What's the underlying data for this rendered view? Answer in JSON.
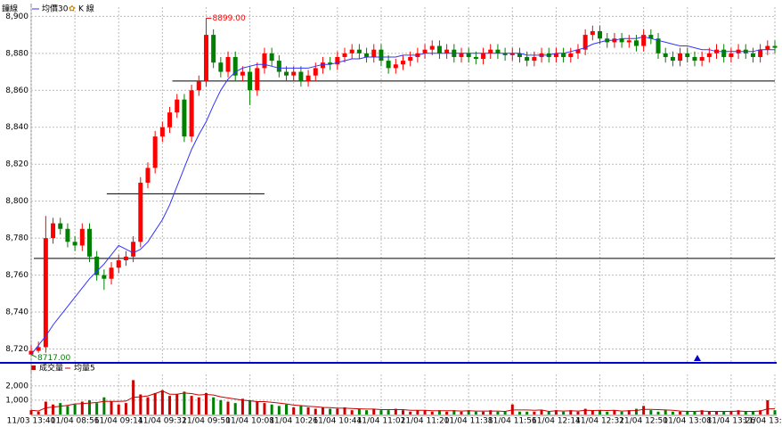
{
  "chart_data": {
    "type": "candlestick",
    "title": "鐘線",
    "legend": [
      "均價30",
      "K 線"
    ],
    "volume_legend": [
      "成交量",
      "均量5"
    ],
    "up_color": "#ff0000",
    "down_color": "#008000",
    "ma_color": "#3333ff",
    "vol_color": "#cc0000",
    "vol_ma_color": "#cc0000",
    "grid": true,
    "categories": [
      "11/03 13:40",
      null,
      null,
      null,
      null,
      null,
      "11/04 08:56",
      null,
      null,
      null,
      null,
      null,
      "11/04 09:14",
      null,
      null,
      null,
      null,
      null,
      "11/04 09:32",
      null,
      null,
      null,
      null,
      null,
      "11/04 09:50",
      null,
      null,
      null,
      null,
      null,
      "11/04 10:08",
      null,
      null,
      null,
      null,
      null,
      "11/04 10:26",
      null,
      null,
      null,
      null,
      null,
      "11/04 10:44",
      null,
      null,
      null,
      null,
      null,
      "11/04 11:02",
      null,
      null,
      null,
      null,
      null,
      "11/04 11:20",
      null,
      null,
      null,
      null,
      null,
      "11/04 11:38",
      null,
      null,
      null,
      null,
      null,
      "11/04 11:56",
      null,
      null,
      null,
      null,
      null,
      "11/04 12:14",
      null,
      null,
      null,
      null,
      null,
      "11/04 12:32",
      null,
      null,
      null,
      null,
      null,
      "11/04 12:50",
      null,
      null,
      null,
      null,
      null,
      "11/04 13:08",
      null,
      null,
      null,
      null,
      null,
      "11/04 13:26",
      null,
      null,
      null,
      null,
      null,
      "11/04 13:"
    ],
    "open": [
      8717,
      8719,
      8721,
      8780,
      8788,
      8785,
      8778,
      8776,
      8785,
      8770,
      8760,
      8758,
      8764,
      8768,
      8770,
      8778,
      8810,
      8818,
      8835,
      8840,
      8848,
      8855,
      8835,
      8860,
      8865,
      8890,
      8875,
      8870,
      8878,
      8868,
      8870,
      8860,
      8872,
      8880,
      8876,
      8870,
      8868,
      8870,
      8865,
      8868,
      8872,
      8875,
      8874,
      8878,
      8880,
      8882,
      8880,
      8878,
      8882,
      8876,
      8872,
      8874,
      8876,
      8878,
      8880,
      8882,
      8884,
      8880,
      8882,
      8878,
      8880,
      8878,
      8877,
      8880,
      8882,
      8880,
      8879,
      8880,
      8878,
      8876,
      8878,
      8880,
      8878,
      8880,
      8878,
      8880,
      8882,
      8890,
      8892,
      8888,
      8886,
      8888,
      8886,
      8887,
      8884,
      8890,
      8888,
      8880,
      8878,
      8876,
      8880,
      8878,
      8876,
      8878,
      8880,
      8882,
      8878,
      8880,
      8882,
      8880,
      8878,
      8882,
      8884
    ],
    "high": [
      8722,
      8724,
      8792,
      8791,
      8791,
      8788,
      8781,
      8788,
      8788,
      8773,
      8763,
      8767,
      8771,
      8773,
      8781,
      8813,
      8821,
      8838,
      8843,
      8851,
      8858,
      8858,
      8863,
      8868,
      8899,
      8893,
      8878,
      8881,
      8881,
      8873,
      8873,
      8875,
      8883,
      8883,
      8879,
      8873,
      8873,
      8873,
      8871,
      8875,
      8878,
      8878,
      8881,
      8883,
      8885,
      8885,
      8883,
      8885,
      8885,
      8879,
      8877,
      8879,
      8881,
      8883,
      8885,
      8887,
      8887,
      8885,
      8885,
      8883,
      8883,
      8881,
      8883,
      8885,
      8885,
      8883,
      8883,
      8883,
      8881,
      8881,
      8883,
      8883,
      8883,
      8883,
      8883,
      8885,
      8893,
      8895,
      8895,
      8891,
      8891,
      8891,
      8890,
      8890,
      8893,
      8893,
      8891,
      8883,
      8881,
      8883,
      8883,
      8881,
      8881,
      8883,
      8885,
      8885,
      8883,
      8885,
      8885,
      8883,
      8885,
      8887,
      8887
    ],
    "low": [
      8717,
      8718,
      8718,
      8777,
      8782,
      8775,
      8773,
      8773,
      8767,
      8757,
      8752,
      8755,
      8761,
      8765,
      8767,
      8775,
      8807,
      8815,
      8832,
      8837,
      8845,
      8832,
      8832,
      8857,
      8862,
      8872,
      8867,
      8867,
      8865,
      8865,
      8852,
      8857,
      8869,
      8873,
      8867,
      8865,
      8865,
      8862,
      8862,
      8865,
      8869,
      8871,
      8871,
      8875,
      8877,
      8877,
      8875,
      8875,
      8873,
      8869,
      8869,
      8871,
      8873,
      8875,
      8877,
      8879,
      8877,
      8877,
      8875,
      8875,
      8875,
      8874,
      8874,
      8877,
      8877,
      8876,
      8876,
      8875,
      8873,
      8873,
      8875,
      8875,
      8875,
      8875,
      8875,
      8877,
      8879,
      8887,
      8885,
      8883,
      8883,
      8883,
      8883,
      8881,
      8881,
      8885,
      8877,
      8875,
      8873,
      8873,
      8875,
      8873,
      8873,
      8875,
      8877,
      8875,
      8875,
      8877,
      8877,
      8875,
      8875,
      8879,
      8880
    ],
    "close": [
      8719,
      8721,
      8780,
      8788,
      8785,
      8778,
      8776,
      8785,
      8770,
      8760,
      8758,
      8764,
      8768,
      8770,
      8778,
      8810,
      8818,
      8835,
      8840,
      8848,
      8855,
      8835,
      8860,
      8865,
      8890,
      8875,
      8870,
      8878,
      8868,
      8870,
      8860,
      8872,
      8880,
      8876,
      8870,
      8868,
      8870,
      8865,
      8868,
      8872,
      8875,
      8874,
      8878,
      8880,
      8882,
      8880,
      8878,
      8882,
      8876,
      8872,
      8874,
      8876,
      8878,
      8880,
      8882,
      8884,
      8880,
      8882,
      8878,
      8880,
      8878,
      8877,
      8880,
      8882,
      8880,
      8879,
      8880,
      8878,
      8876,
      8878,
      8880,
      8878,
      8880,
      8878,
      8880,
      8882,
      8890,
      8892,
      8888,
      8886,
      8888,
      8886,
      8887,
      8884,
      8890,
      8888,
      8880,
      8878,
      8876,
      8880,
      8878,
      8876,
      8878,
      8880,
      8882,
      8878,
      8880,
      8882,
      8880,
      8878,
      8882,
      8884,
      8883
    ],
    "ma": [
      8717,
      8722,
      8727,
      8733,
      8738,
      8743,
      8748,
      8753,
      8758,
      8762,
      8766,
      8771,
      8776,
      8774,
      8772,
      8774,
      8778,
      8784,
      8790,
      8798,
      8808,
      8818,
      8828,
      8836,
      8843,
      8852,
      8860,
      8866,
      8870,
      8872,
      8873,
      8874,
      8874,
      8873,
      8872,
      8872,
      8872,
      8872,
      8872,
      8873,
      8874,
      8874,
      8875,
      8876,
      8877,
      8877,
      8878,
      8878,
      8878,
      8878,
      8878,
      8879,
      8879,
      8879,
      8880,
      8880,
      8880,
      8880,
      8880,
      8880,
      8880,
      8880,
      8880,
      8880,
      8880,
      8880,
      8880,
      8880,
      8879,
      8879,
      8879,
      8879,
      8880,
      8880,
      8881,
      8882,
      8883,
      8885,
      8886,
      8887,
      8887,
      8888,
      8888,
      8888,
      8889,
      8888,
      8887,
      8886,
      8885,
      8884,
      8884,
      8883,
      8882,
      8882,
      8881,
      8881,
      8881,
      8881,
      8881,
      8881,
      8882,
      8882,
      8882
    ],
    "volume": [
      300,
      200,
      900,
      700,
      800,
      600,
      700,
      900,
      1000,
      800,
      1200,
      900,
      700,
      800,
      2400,
      1400,
      1200,
      1500,
      1700,
      1300,
      1400,
      1600,
      1300,
      1200,
      1500,
      1200,
      1000,
      900,
      800,
      1100,
      1000,
      900,
      800,
      700,
      600,
      700,
      500,
      600,
      500,
      400,
      500,
      400,
      400,
      500,
      300,
      400,
      300,
      400,
      300,
      300,
      400,
      300,
      200,
      300,
      300,
      200,
      300,
      200,
      300,
      200,
      300,
      200,
      200,
      300,
      200,
      200,
      700,
      200,
      200,
      200,
      300,
      200,
      300,
      200,
      300,
      200,
      400,
      300,
      300,
      200,
      300,
      200,
      300,
      400,
      600,
      300,
      200,
      300,
      200,
      200,
      200,
      200,
      300,
      200,
      200,
      200,
      200,
      300,
      200,
      200,
      300,
      1000,
      300
    ],
    "volume_ma": [
      300,
      250,
      467,
      525,
      580,
      640,
      740,
      760,
      800,
      840,
      920,
      920,
      920,
      940,
      1200,
      1240,
      1300,
      1460,
      1640,
      1420,
      1420,
      1500,
      1460,
      1360,
      1400,
      1360,
      1240,
      1160,
      1080,
      1000,
      960,
      900,
      900,
      860,
      800,
      740,
      660,
      620,
      580,
      540,
      500,
      480,
      440,
      440,
      420,
      400,
      380,
      380,
      340,
      340,
      340,
      340,
      300,
      300,
      300,
      260,
      260,
      260,
      260,
      240,
      260,
      240,
      240,
      240,
      240,
      220,
      320,
      320,
      320,
      300,
      320,
      220,
      260,
      240,
      260,
      240,
      300,
      280,
      300,
      280,
      300,
      240,
      260,
      280,
      360,
      360,
      340,
      320,
      300,
      240,
      220,
      220,
      240,
      220,
      220,
      220,
      220,
      240,
      220,
      220,
      240,
      400,
      400
    ],
    "ylim": [
      8713,
      8905
    ],
    "yticks": [
      {
        "value": 8720,
        "label": "8,720"
      },
      {
        "value": 8740,
        "label": "8,740"
      },
      {
        "value": 8760,
        "label": "8,760"
      },
      {
        "value": 8780,
        "label": "8,780"
      },
      {
        "value": 8800,
        "label": "8,800"
      },
      {
        "value": 8820,
        "label": "8,820"
      },
      {
        "value": 8840,
        "label": "8,840"
      },
      {
        "value": 8860,
        "label": "8,860"
      },
      {
        "value": 8880,
        "label": "8,880"
      },
      {
        "value": 8900,
        "label": "8,900"
      }
    ],
    "y2lim": [
      0,
      2800
    ],
    "y2ticks": [
      {
        "value": 1000,
        "label": "1,000"
      },
      {
        "value": 2000,
        "label": "2,000"
      }
    ],
    "hlines": [
      {
        "value": 8769,
        "from": 0,
        "to": 102
      },
      {
        "value": 8804,
        "from": 10,
        "to": 32
      },
      {
        "value": 8865,
        "from": 19,
        "to": 102
      }
    ],
    "annotations": [
      {
        "text": "8899.00",
        "value": 8899,
        "index": 24,
        "color": "#ff0000"
      },
      {
        "text": "8717.00",
        "value": 8717,
        "index": 0,
        "color": "#008000"
      }
    ]
  }
}
